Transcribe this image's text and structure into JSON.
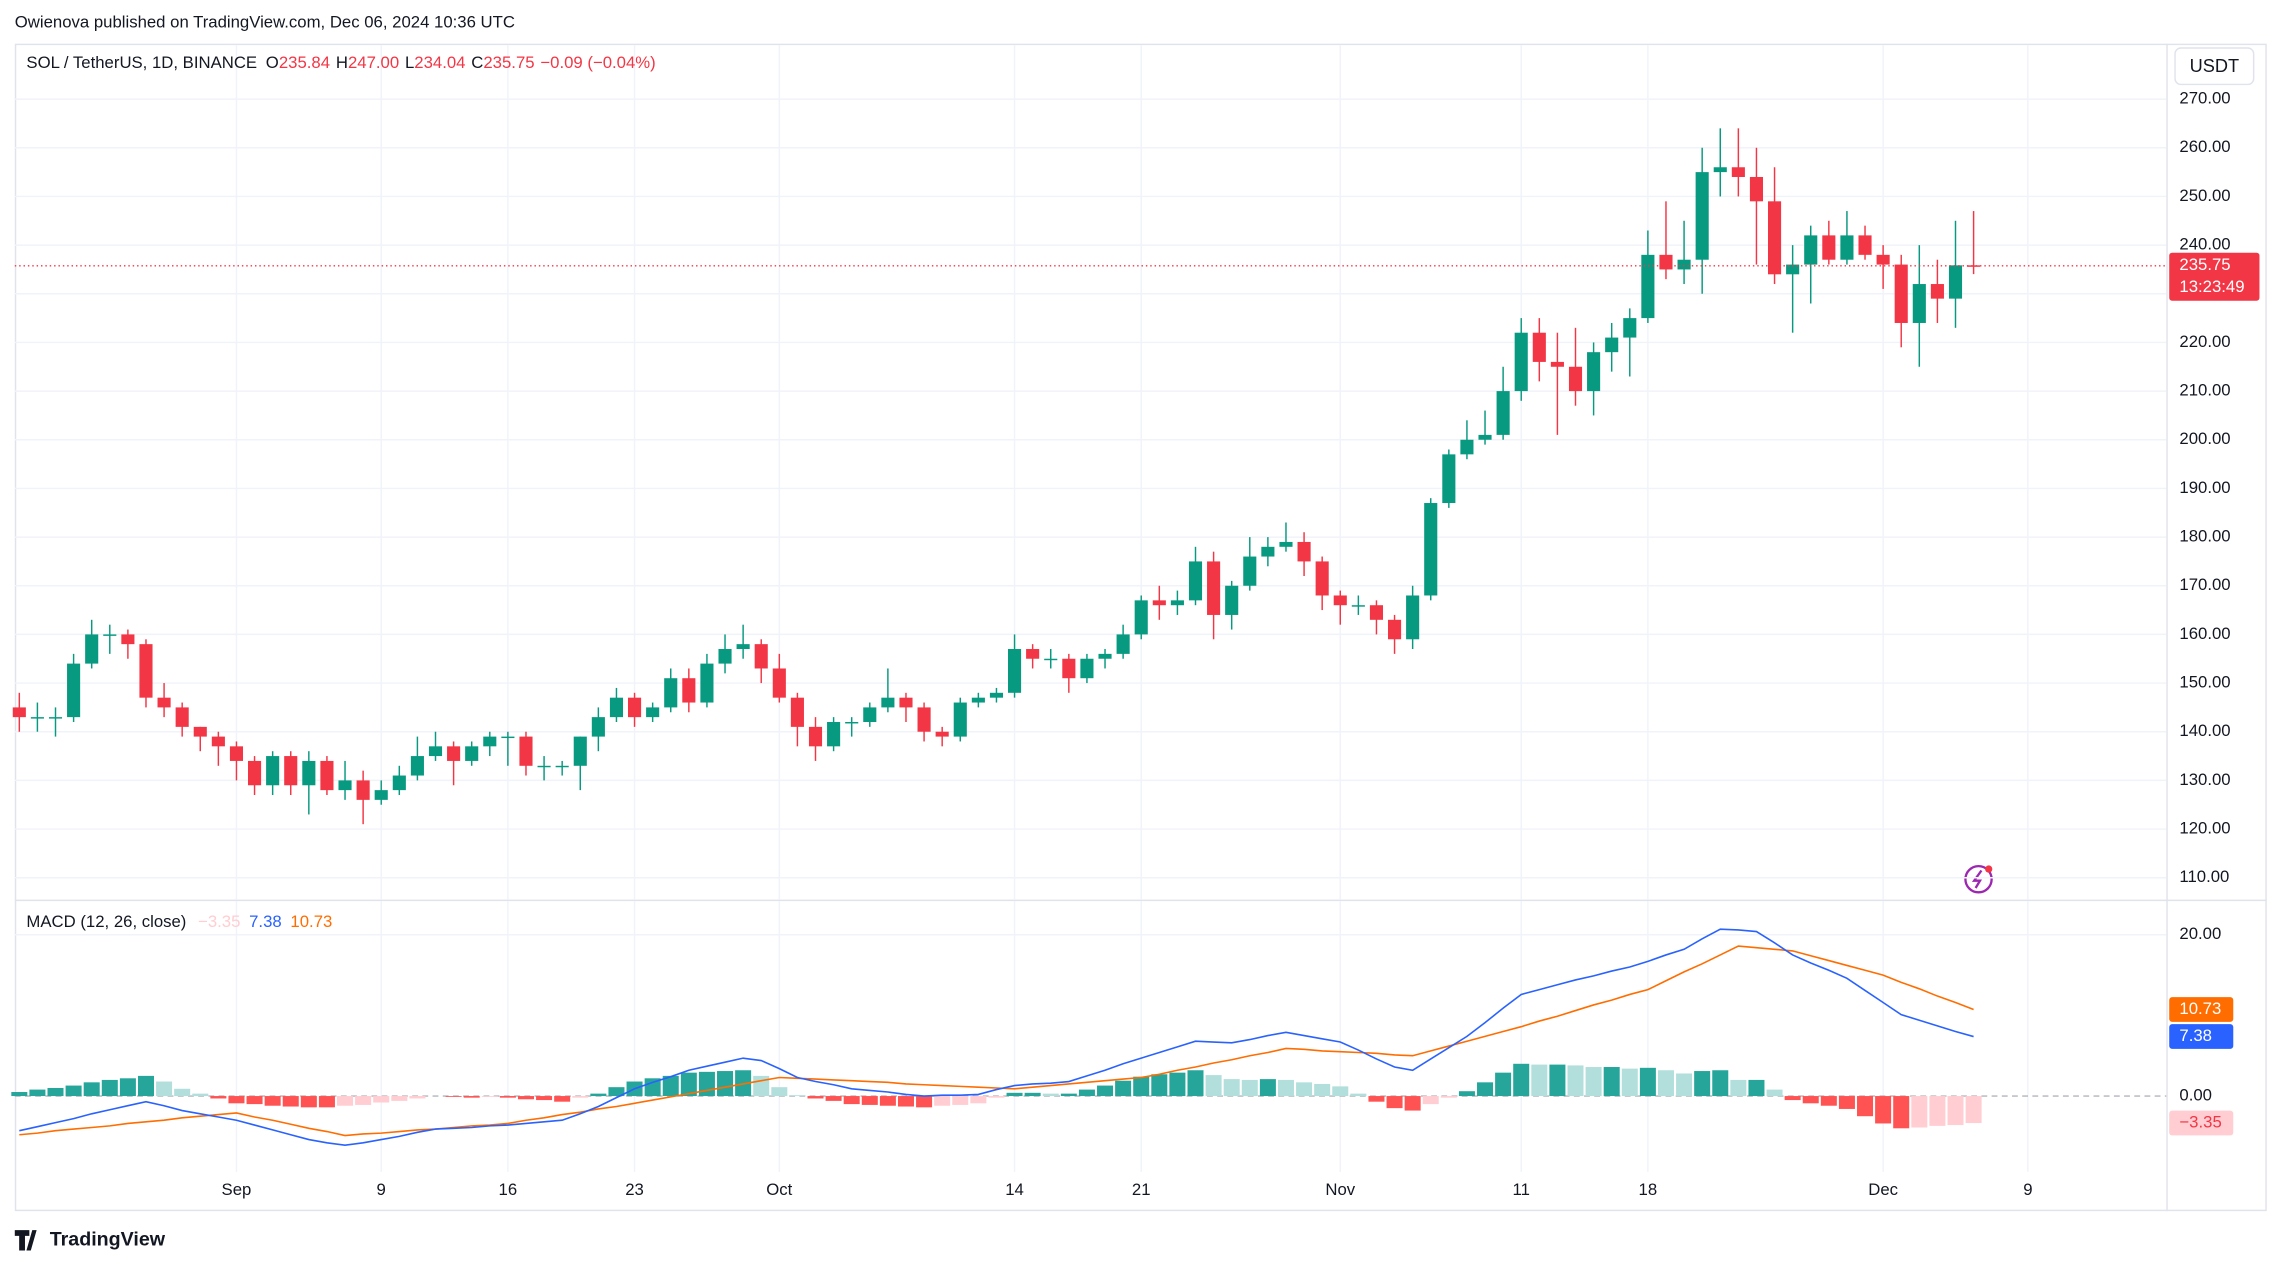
{
  "header": {
    "publisher": "Owienova published on TradingView.com, Dec 06, 2024 10:36 UTC"
  },
  "currency_button": "USDT",
  "footer": {
    "brand": "TradingView"
  },
  "chart_data": [
    {
      "type": "candlestick",
      "title": "SOL / TetherUS, 1D, BINANCE",
      "legend": [
        {
          "key": "O",
          "text": "235.84"
        },
        {
          "key": "H",
          "text": "247.00"
        },
        {
          "key": "L",
          "text": "234.04"
        },
        {
          "key": "C",
          "text": "235.75"
        }
      ],
      "change": "−0.09 (−0.04%)",
      "up_color": "#089981",
      "down_color": "#f23645",
      "open": [
        145,
        143,
        143,
        143,
        154,
        160,
        160,
        158,
        147,
        145,
        141,
        139,
        137,
        134,
        129,
        135,
        129,
        134,
        128,
        130,
        126,
        128,
        131,
        135,
        137,
        134,
        137,
        139,
        139,
        133,
        133,
        133,
        139,
        143,
        147,
        143,
        145,
        151,
        146,
        154,
        157,
        158,
        153,
        147,
        141,
        137,
        142,
        142,
        145,
        147,
        145,
        140,
        139,
        146,
        147,
        148,
        157,
        155,
        155,
        151,
        155,
        156,
        160,
        167,
        166,
        167,
        175,
        164,
        170,
        176,
        178,
        179,
        175,
        168,
        166,
        166,
        163,
        159,
        168,
        187,
        197,
        200,
        201,
        210,
        222,
        216,
        215,
        210,
        218,
        221,
        225,
        238,
        235,
        237,
        255,
        256,
        254,
        249,
        234,
        236,
        242,
        237,
        242,
        238,
        236,
        224,
        232,
        229,
        235.84
      ],
      "high": [
        148,
        146,
        145,
        156,
        163,
        162,
        161,
        159,
        150,
        146,
        141,
        140,
        138,
        135,
        136,
        136,
        136,
        135,
        134,
        132,
        130,
        133,
        139,
        140,
        138,
        138,
        140,
        140,
        140,
        135,
        134,
        139,
        145,
        149,
        148,
        146,
        153,
        153,
        156,
        160,
        162,
        159,
        156,
        148,
        143,
        143,
        143,
        146,
        153,
        148,
        146,
        141,
        147,
        148,
        149,
        160,
        158,
        157,
        156,
        156,
        157,
        162,
        168,
        170,
        169,
        178,
        177,
        171,
        180,
        180,
        183,
        181,
        176,
        169,
        168,
        167,
        164,
        170,
        188,
        198,
        204,
        206,
        215,
        225,
        225,
        222,
        223,
        220,
        224,
        227,
        243,
        249,
        245,
        260,
        264,
        264,
        260,
        256,
        240,
        244,
        245,
        247,
        244,
        240,
        238,
        240,
        237,
        245,
        247
      ],
      "low": [
        140,
        140,
        139,
        142,
        153,
        156,
        155,
        145,
        143,
        139,
        136,
        133,
        130,
        127,
        127,
        127,
        123,
        127,
        126,
        121,
        125,
        127,
        130,
        134,
        129,
        133,
        135,
        133,
        131,
        130,
        131,
        128,
        136,
        142,
        141,
        142,
        144,
        144,
        145,
        152,
        155,
        150,
        146,
        137,
        134,
        136,
        139,
        141,
        144,
        142,
        138,
        137,
        138,
        145,
        146,
        147,
        153,
        153,
        148,
        150,
        153,
        155,
        159,
        163,
        164,
        166,
        159,
        161,
        169,
        174,
        177,
        172,
        165,
        162,
        164,
        160,
        156,
        157,
        167,
        186,
        196,
        199,
        200,
        208,
        212,
        201,
        207,
        205,
        214,
        213,
        224,
        233,
        232,
        230,
        250,
        250,
        236,
        232,
        222,
        228,
        236,
        236,
        237,
        231,
        219,
        215,
        224,
        223,
        234.04
      ],
      "close": [
        143,
        143,
        143,
        154,
        160,
        160,
        158,
        147,
        145,
        141,
        139,
        137,
        134,
        129,
        135,
        129,
        134,
        128,
        130,
        126,
        128,
        131,
        135,
        137,
        134,
        137,
        139,
        139,
        133,
        133,
        133,
        139,
        143,
        147,
        143,
        145,
        151,
        146,
        154,
        157,
        158,
        153,
        147,
        141,
        137,
        142,
        142,
        145,
        147,
        145,
        140,
        139,
        146,
        147,
        148,
        157,
        155,
        155,
        151,
        155,
        156,
        160,
        167,
        166,
        167,
        175,
        164,
        170,
        176,
        178,
        179,
        175,
        168,
        166,
        166,
        163,
        159,
        168,
        187,
        197,
        200,
        201,
        210,
        222,
        216,
        215,
        210,
        218,
        221,
        225,
        238,
        235,
        237,
        255,
        256,
        254,
        249,
        234,
        236,
        242,
        237,
        242,
        238,
        236,
        224,
        232,
        229,
        235.84,
        235.75
      ],
      "ylim": [
        105.5,
        279.9
      ],
      "yticks": [
        {
          "value": 110,
          "label": "110.00"
        },
        {
          "value": 120,
          "label": "120.00"
        },
        {
          "value": 130,
          "label": "130.00"
        },
        {
          "value": 140,
          "label": "140.00"
        },
        {
          "value": 150,
          "label": "150.00"
        },
        {
          "value": 160,
          "label": "160.00"
        },
        {
          "value": 170,
          "label": "170.00"
        },
        {
          "value": 180,
          "label": "180.00"
        },
        {
          "value": 190,
          "label": "190.00"
        },
        {
          "value": 200,
          "label": "200.00"
        },
        {
          "value": 210,
          "label": "210.00"
        },
        {
          "value": 220,
          "label": "220.00"
        },
        {
          "value": 230,
          "label": "230.00"
        },
        {
          "value": 240,
          "label": "240.00"
        },
        {
          "value": 250,
          "label": "250.00"
        },
        {
          "value": 260,
          "label": "260.00"
        },
        {
          "value": 270,
          "label": "270.00"
        }
      ],
      "xlim": [
        -0.25,
        118.65
      ],
      "xticks": [
        {
          "value": 12,
          "label": "Sep"
        },
        {
          "value": 20,
          "label": "9"
        },
        {
          "value": 27,
          "label": "16"
        },
        {
          "value": 34,
          "label": "23"
        },
        {
          "value": 42,
          "label": "Oct"
        },
        {
          "value": 55,
          "label": "14"
        },
        {
          "value": 62,
          "label": "21"
        },
        {
          "value": 73,
          "label": "Nov"
        },
        {
          "value": 83,
          "label": "11"
        },
        {
          "value": 90,
          "label": "18"
        },
        {
          "value": 103,
          "label": "Dec"
        },
        {
          "value": 111,
          "label": "9"
        }
      ],
      "last_price": {
        "value": 235.75,
        "label": "235.75",
        "countdown": "13:23:49"
      },
      "grid": true
    },
    {
      "type": "macd",
      "title": "MACD (12, 26, close)",
      "histogram": {
        "colors": {
          "up_strong": "#26a69a",
          "up_weak": "#b2dfdb",
          "down_strong": "#ff5252",
          "down_weak": "#ffcdd2"
        },
        "value_label": "−3.35",
        "values": [
          0.5,
          0.8,
          1.0,
          1.3,
          1.7,
          2.0,
          2.2,
          2.5,
          1.8,
          0.9,
          0.3,
          -0.3,
          -0.9,
          -1.0,
          -1.2,
          -1.3,
          -1.4,
          -1.4,
          -1.2,
          -1.1,
          -0.8,
          -0.6,
          -0.3,
          0.0,
          -0.1,
          -0.2,
          -0.1,
          -0.2,
          -0.4,
          -0.5,
          -0.7,
          -0.2,
          0.3,
          1.1,
          1.8,
          2.2,
          2.5,
          2.9,
          3.0,
          3.1,
          3.2,
          2.5,
          1.1,
          0.1,
          -0.3,
          -0.6,
          -1.0,
          -1.1,
          -1.2,
          -1.3,
          -1.4,
          -1.2,
          -1.1,
          -0.9,
          -0.2,
          0.4,
          0.4,
          0.3,
          0.3,
          0.8,
          1.3,
          1.9,
          2.4,
          2.7,
          2.9,
          3.2,
          2.6,
          2.1,
          2.0,
          2.1,
          2.0,
          1.7,
          1.5,
          1.2,
          0.3,
          -0.7,
          -1.5,
          -1.8,
          -1.0,
          -0.2,
          0.6,
          1.7,
          2.9,
          4.0,
          3.9,
          3.9,
          3.8,
          3.6,
          3.6,
          3.4,
          3.5,
          3.2,
          2.8,
          3.1,
          3.2,
          2.0,
          2.0,
          0.8,
          -0.5,
          -0.9,
          -1.2,
          -1.6,
          -2.5,
          -3.4,
          -4.0,
          -3.9,
          -3.7,
          -3.6,
          -3.35
        ]
      },
      "macd": {
        "color": "#2962ff",
        "value_label": "7.38",
        "values": [
          -4.3,
          -3.8,
          -3.3,
          -2.8,
          -2.2,
          -1.7,
          -1.2,
          -0.7,
          -1.2,
          -1.8,
          -2.2,
          -2.6,
          -3.0,
          -3.6,
          -4.2,
          -4.8,
          -5.4,
          -5.8,
          -6.1,
          -5.8,
          -5.4,
          -5.0,
          -4.5,
          -4.1,
          -4.0,
          -3.9,
          -3.7,
          -3.6,
          -3.4,
          -3.2,
          -3.0,
          -2.2,
          -1.3,
          -0.2,
          0.9,
          1.7,
          2.4,
          3.2,
          3.7,
          4.2,
          4.7,
          4.4,
          3.4,
          2.3,
          1.8,
          1.4,
          0.9,
          0.7,
          0.5,
          0.2,
          0.0,
          0.1,
          0.1,
          0.2,
          0.8,
          1.3,
          1.5,
          1.6,
          1.8,
          2.5,
          3.2,
          4.0,
          4.7,
          5.4,
          6.1,
          6.8,
          6.7,
          6.6,
          7.0,
          7.5,
          7.9,
          7.5,
          7.1,
          6.7,
          5.7,
          4.6,
          3.6,
          3.2,
          4.6,
          6.0,
          7.4,
          9.1,
          10.9,
          12.6,
          13.2,
          13.8,
          14.4,
          14.9,
          15.5,
          16.0,
          16.7,
          17.5,
          18.2,
          19.5,
          20.7,
          20.6,
          20.4,
          19.0,
          17.5,
          16.5,
          15.6,
          14.6,
          13.1,
          11.6,
          10.1,
          9.4,
          8.7,
          8.0,
          7.38
        ]
      },
      "signal": {
        "color": "#ff6d00",
        "value_label": "10.73",
        "values": [
          -4.8,
          -4.6,
          -4.3,
          -4.1,
          -3.9,
          -3.7,
          -3.4,
          -3.2,
          -3.0,
          -2.7,
          -2.5,
          -2.3,
          -2.1,
          -2.6,
          -3.0,
          -3.5,
          -4.0,
          -4.4,
          -4.9,
          -4.7,
          -4.6,
          -4.4,
          -4.2,
          -4.1,
          -3.9,
          -3.7,
          -3.6,
          -3.4,
          -3.0,
          -2.7,
          -2.3,
          -2.0,
          -1.6,
          -1.3,
          -0.9,
          -0.5,
          -0.1,
          0.3,
          0.7,
          1.1,
          1.5,
          1.9,
          2.3,
          2.2,
          2.1,
          2.0,
          1.9,
          1.8,
          1.7,
          1.5,
          1.4,
          1.3,
          1.2,
          1.1,
          1.0,
          0.9,
          1.1,
          1.3,
          1.5,
          1.7,
          1.9,
          2.1,
          2.3,
          2.7,
          3.2,
          3.6,
          4.1,
          4.5,
          5.0,
          5.4,
          5.9,
          5.8,
          5.6,
          5.5,
          5.4,
          5.3,
          5.1,
          5.0,
          5.6,
          6.2,
          6.8,
          7.4,
          8.0,
          8.6,
          9.3,
          9.9,
          10.6,
          11.3,
          11.9,
          12.6,
          13.2,
          14.3,
          15.4,
          16.4,
          17.5,
          18.6,
          18.4,
          18.2,
          18.0,
          17.4,
          16.8,
          16.2,
          15.6,
          15.0,
          14.1,
          13.3,
          12.4,
          11.6,
          10.73
        ]
      },
      "ylim": [
        -9.4,
        24
      ],
      "yticks": [
        {
          "value": 0,
          "label": "0.00"
        },
        {
          "value": 20,
          "label": "20.00"
        }
      ]
    }
  ]
}
